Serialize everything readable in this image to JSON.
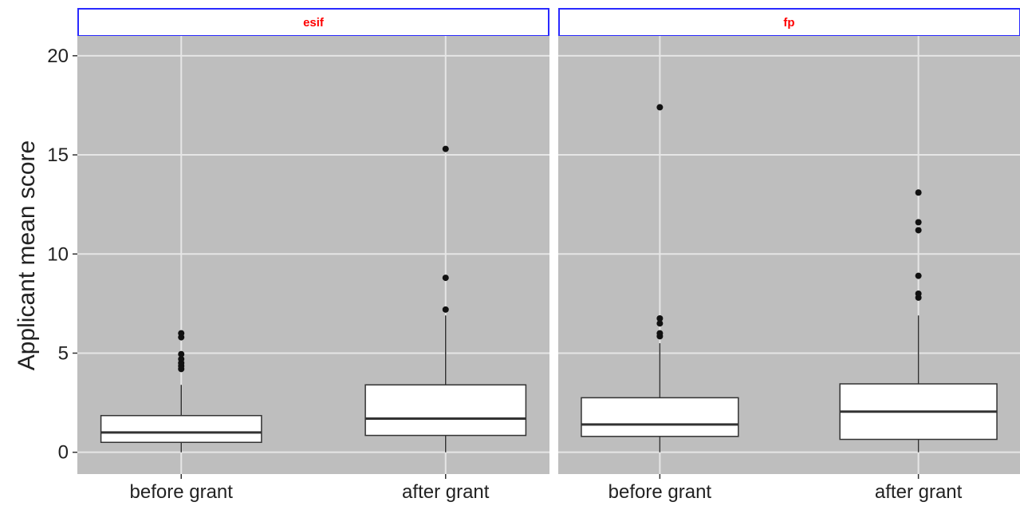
{
  "chart_data": {
    "type": "boxplot",
    "ylabel": "Applicant mean score",
    "xlabel": "",
    "ylim": [
      -1.1,
      21
    ],
    "yticks": [
      0,
      5,
      10,
      15,
      20
    ],
    "categories": [
      "before grant",
      "after grant"
    ],
    "grid": true,
    "colors": {
      "panel_background": "#bebebe",
      "grid": "#e6e6e6",
      "strip_border": "#2a2aff",
      "strip_text": "#ff0000",
      "box_fill": "#ffffff",
      "box_stroke": "#333333",
      "outlier": "#111111"
    },
    "panels": [
      {
        "facet": "esif",
        "boxes": [
          {
            "category": "before grant",
            "whisker_low": 0,
            "q1": 0.5,
            "median": 1.0,
            "q3": 1.85,
            "whisker_high": 3.4,
            "outliers": [
              4.2,
              4.35,
              4.5,
              4.7,
              4.95,
              5.8,
              6.0
            ]
          },
          {
            "category": "after grant",
            "whisker_low": 0,
            "q1": 0.85,
            "median": 1.7,
            "q3": 3.4,
            "whisker_high": 6.9,
            "outliers": [
              7.2,
              8.8,
              15.3
            ]
          }
        ]
      },
      {
        "facet": "fp",
        "boxes": [
          {
            "category": "before grant",
            "whisker_low": 0,
            "q1": 0.8,
            "median": 1.4,
            "q3": 2.75,
            "whisker_high": 5.5,
            "outliers": [
              5.85,
              6.0,
              6.5,
              6.75,
              17.4
            ]
          },
          {
            "category": "after grant",
            "whisker_low": 0,
            "q1": 0.65,
            "median": 2.05,
            "q3": 3.45,
            "whisker_high": 6.9,
            "outliers": [
              7.8,
              8.0,
              8.9,
              11.2,
              11.6,
              13.1
            ]
          }
        ]
      }
    ]
  }
}
